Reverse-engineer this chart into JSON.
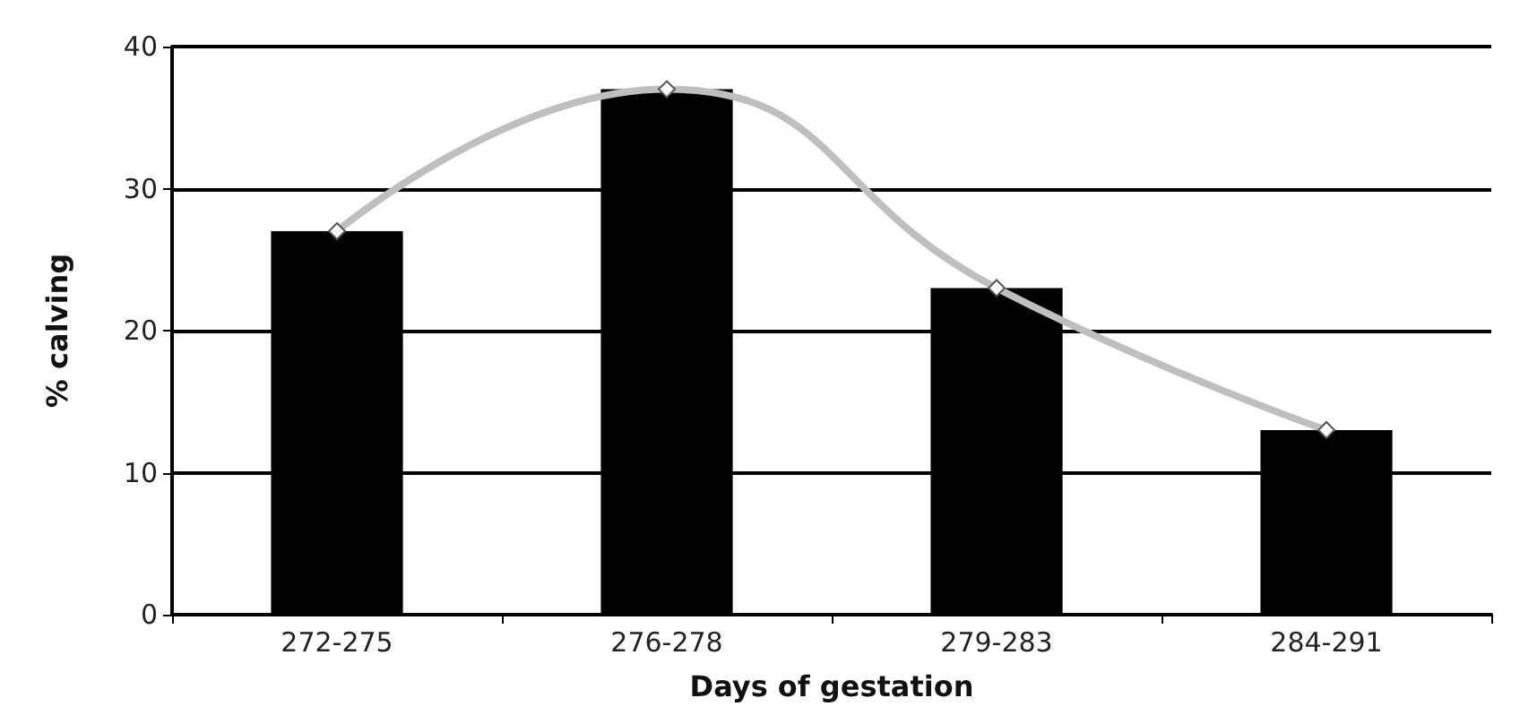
{
  "chart_data": {
    "type": "bar",
    "xlabel": "Days of gestation",
    "ylabel": "% calving",
    "categories": [
      "272-275",
      "276-278",
      "279-283",
      "284-291"
    ],
    "series": [
      {
        "color": "#000000",
        "values": [
          27,
          37,
          23,
          13
        ]
      },
      {
        "type": "line",
        "color": "#bfbfbf",
        "marker": "diamond",
        "values": [
          27,
          37,
          23,
          13
        ]
      }
    ],
    "ylim": [
      0,
      40
    ],
    "yticks": [
      0,
      10,
      20,
      30,
      40
    ],
    "grid": "y"
  }
}
